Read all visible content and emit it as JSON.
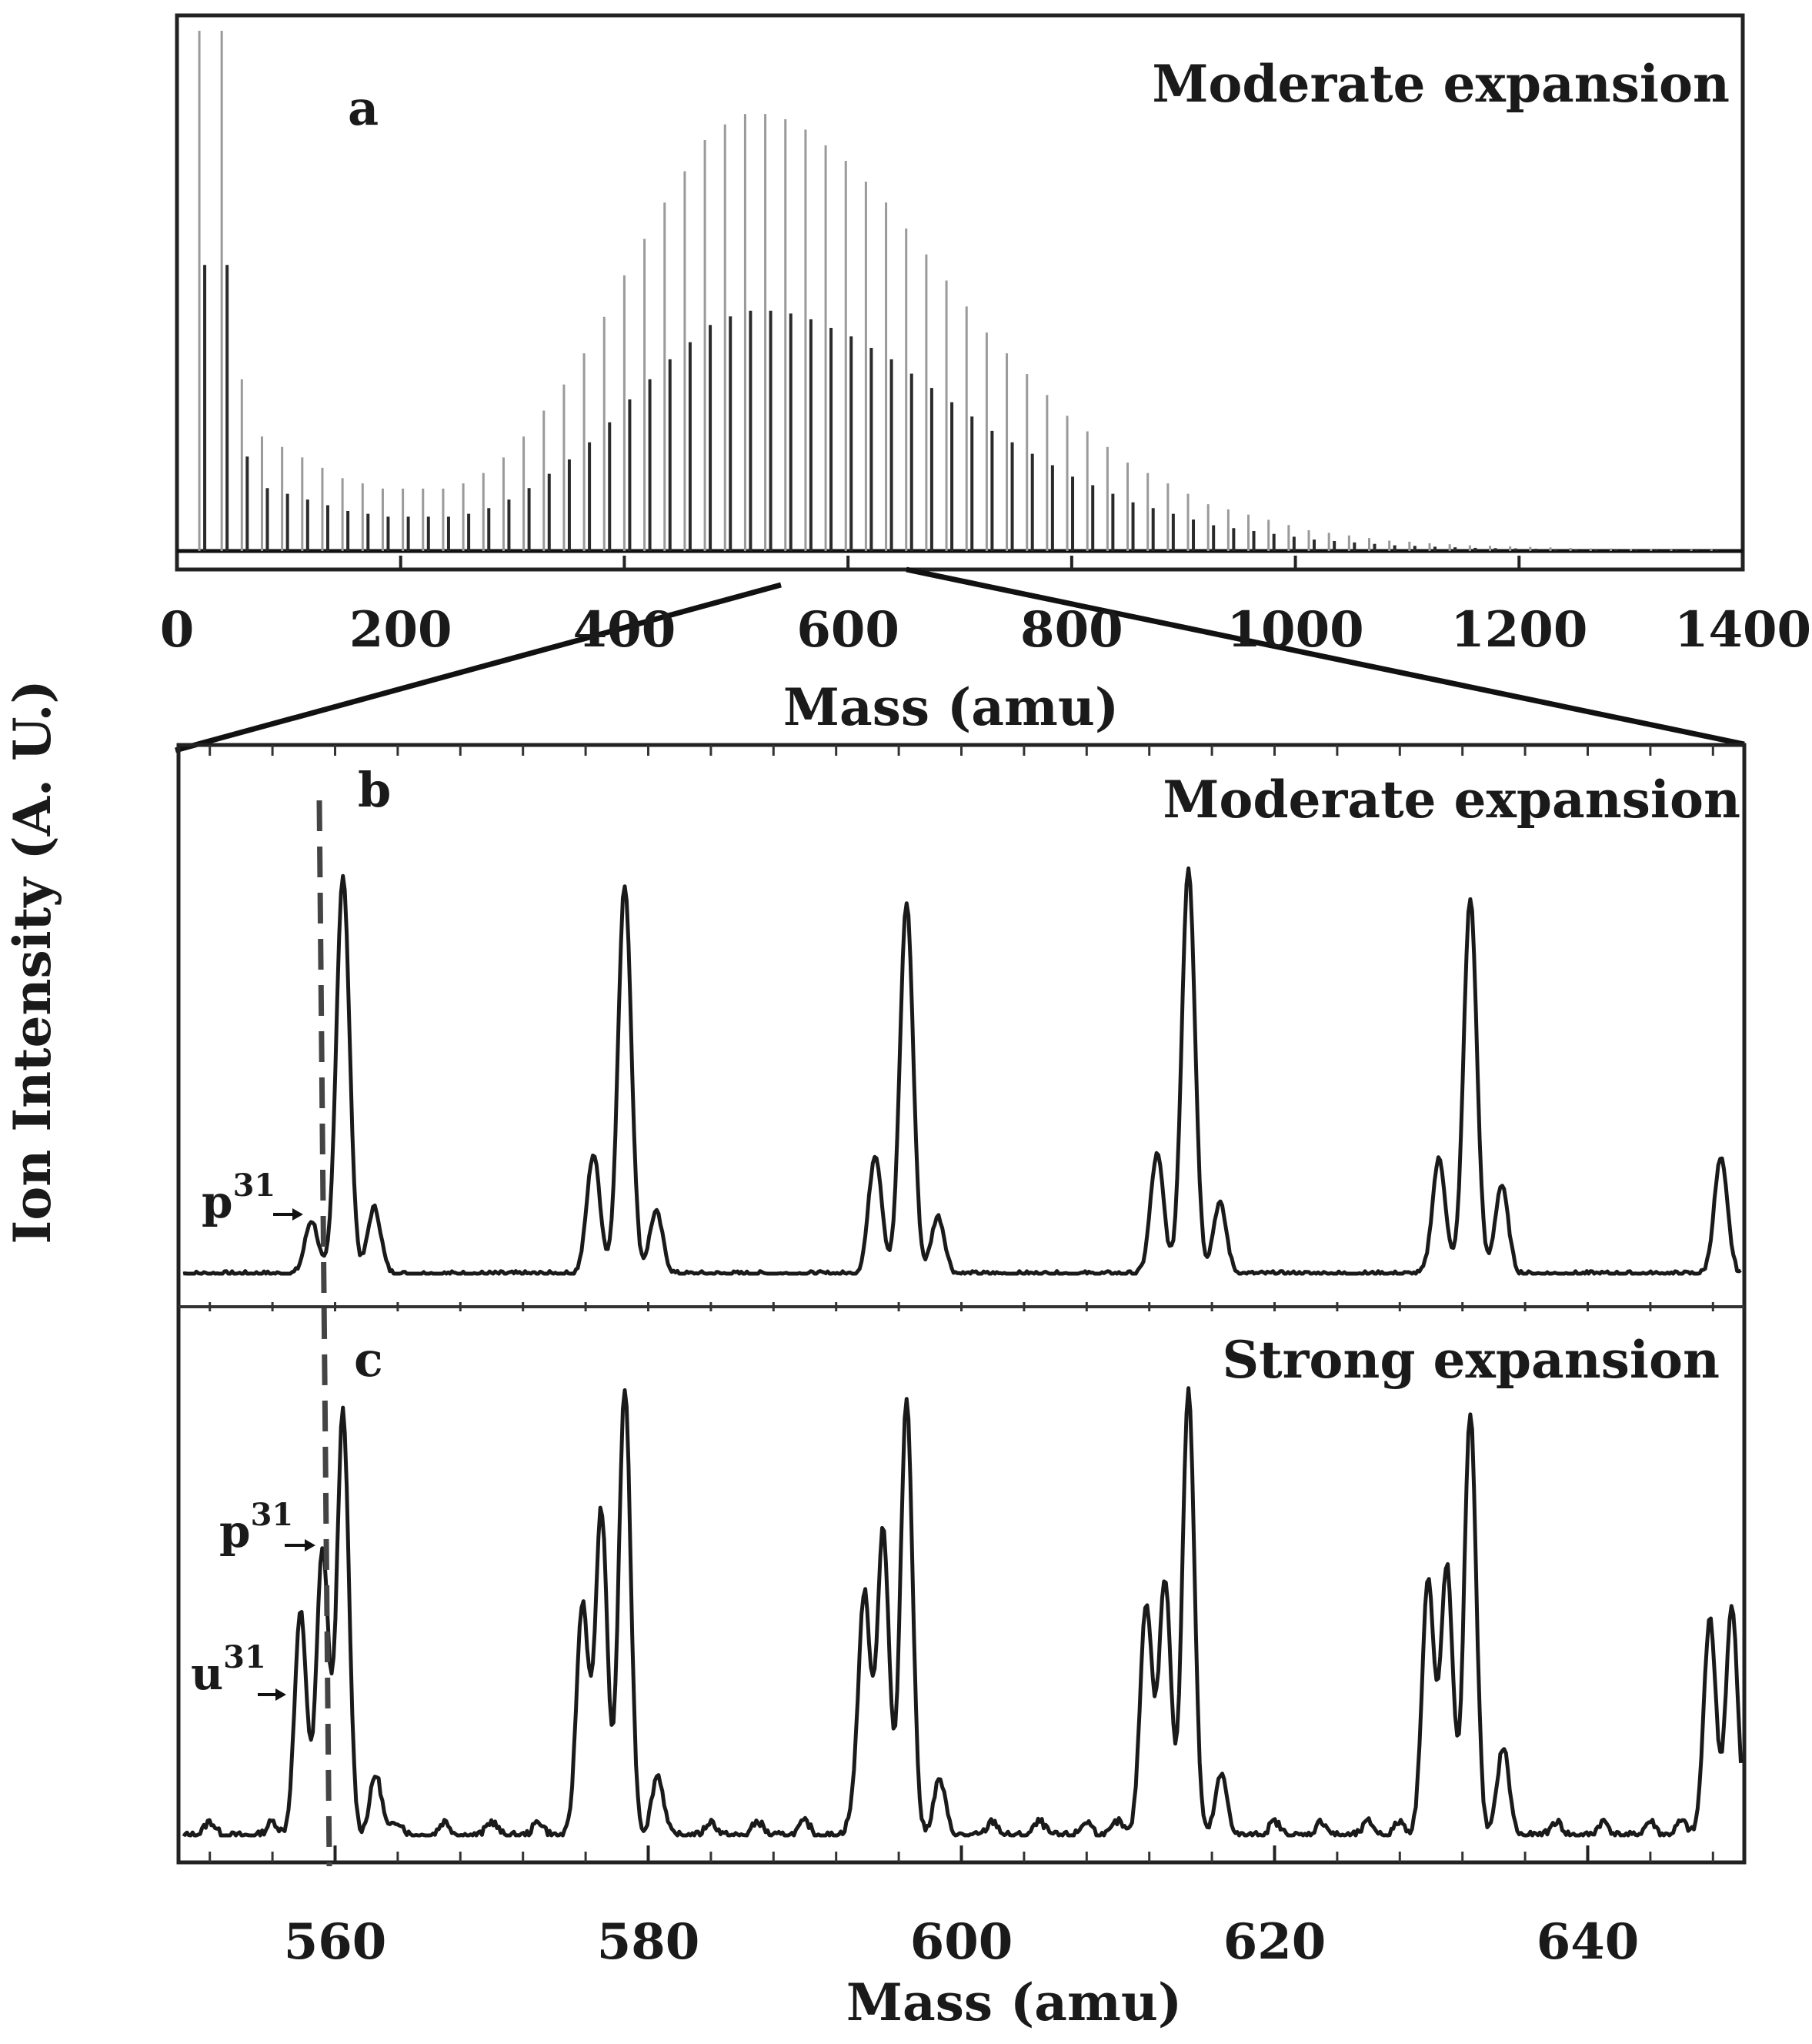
{
  "ylabel": "Ion Intensity (A. U.)",
  "arrow_labels": {
    "b_p31": {
      "base": "p",
      "sup": "31"
    },
    "c_p31": {
      "base": "p",
      "sup": "31"
    },
    "c_u31": {
      "base": "u",
      "sup": "31"
    }
  },
  "chart_data": [
    {
      "panel": "a",
      "type": "bar",
      "title": "Moderate expansion",
      "xlabel": "Mass (amu)",
      "ylabel": "Ion Intensity (A. U.)",
      "xlim": [
        0,
        1400
      ],
      "xticks": [
        0,
        200,
        400,
        600,
        800,
        1000,
        1200,
        1400
      ],
      "tick_labels": [
        "0",
        "200",
        "400",
        "600",
        "800",
        "1000",
        "1200",
        "1400"
      ],
      "grid": false,
      "note": "cluster distribution; intensity in arbitrary units (0-1)",
      "x": [
        20,
        40,
        58,
        76,
        94,
        112,
        130,
        148,
        166,
        184,
        202,
        220,
        238,
        256,
        274,
        292,
        310,
        328,
        346,
        364,
        382,
        400,
        418,
        436,
        454,
        472,
        490,
        508,
        526,
        544,
        562,
        580,
        598,
        616,
        634,
        652,
        670,
        688,
        706,
        724,
        742,
        760,
        778,
        796,
        814,
        832,
        850,
        868,
        886,
        904,
        922,
        940,
        958,
        976,
        994,
        1012,
        1030,
        1048,
        1066,
        1084,
        1102,
        1120,
        1138,
        1156,
        1174,
        1192,
        1210,
        1228,
        1246,
        1264,
        1282,
        1300,
        1318,
        1336,
        1354,
        1372
      ],
      "values": [
        1.0,
        1.0,
        0.33,
        0.22,
        0.2,
        0.18,
        0.16,
        0.14,
        0.13,
        0.12,
        0.12,
        0.12,
        0.12,
        0.13,
        0.15,
        0.18,
        0.22,
        0.27,
        0.32,
        0.38,
        0.45,
        0.53,
        0.6,
        0.67,
        0.73,
        0.79,
        0.82,
        0.84,
        0.84,
        0.83,
        0.81,
        0.78,
        0.75,
        0.71,
        0.67,
        0.62,
        0.57,
        0.52,
        0.47,
        0.42,
        0.38,
        0.34,
        0.3,
        0.26,
        0.23,
        0.2,
        0.17,
        0.15,
        0.13,
        0.11,
        0.09,
        0.08,
        0.07,
        0.06,
        0.05,
        0.04,
        0.035,
        0.03,
        0.025,
        0.02,
        0.018,
        0.015,
        0.013,
        0.011,
        0.01,
        0.009,
        0.008,
        0.007,
        0.006,
        0.005,
        0.005,
        0.004,
        0.004,
        0.003,
        0.003,
        0.003
      ]
    },
    {
      "panel": "b",
      "type": "line",
      "title": "Moderate expansion",
      "xlabel": "Mass (amu)",
      "xlim": [
        550,
        650
      ],
      "grid": false,
      "note": "peak triplets ~18 amu apart; heights normalized 0-1",
      "series": [
        {
          "peaks": [
            {
              "x": 558.5,
              "height": 0.12
            },
            {
              "x": 560.5,
              "height": 0.9
            },
            {
              "x": 562.5,
              "height": 0.15
            },
            {
              "x": 576.5,
              "height": 0.27
            },
            {
              "x": 578.5,
              "height": 0.88
            },
            {
              "x": 580.5,
              "height": 0.14
            },
            {
              "x": 594.5,
              "height": 0.27
            },
            {
              "x": 596.5,
              "height": 0.84
            },
            {
              "x": 598.5,
              "height": 0.13
            },
            {
              "x": 612.5,
              "height": 0.27
            },
            {
              "x": 614.5,
              "height": 0.92
            },
            {
              "x": 616.5,
              "height": 0.16
            },
            {
              "x": 630.5,
              "height": 0.26
            },
            {
              "x": 632.5,
              "height": 0.85
            },
            {
              "x": 634.5,
              "height": 0.2
            },
            {
              "x": 648.5,
              "height": 0.26
            }
          ]
        }
      ]
    },
    {
      "panel": "c",
      "type": "line",
      "title": "Strong expansion",
      "xlabel": "Mass (amu)",
      "xlim": [
        550,
        650
      ],
      "xticks": [
        560,
        580,
        600,
        620,
        640
      ],
      "tick_labels": [
        "560",
        "580",
        "600",
        "620",
        "640"
      ],
      "grid": false,
      "note": "peak clusters ~18 amu apart; heights normalized 0-1",
      "series": [
        {
          "peaks": [
            {
              "x": 557.8,
              "height": 0.48
            },
            {
              "x": 559.2,
              "height": 0.62
            },
            {
              "x": 560.5,
              "height": 0.91
            },
            {
              "x": 562.6,
              "height": 0.13
            },
            {
              "x": 575.8,
              "height": 0.5
            },
            {
              "x": 577.0,
              "height": 0.7
            },
            {
              "x": 578.5,
              "height": 0.96
            },
            {
              "x": 580.6,
              "height": 0.13
            },
            {
              "x": 593.8,
              "height": 0.52
            },
            {
              "x": 595.0,
              "height": 0.66
            },
            {
              "x": 596.5,
              "height": 0.94
            },
            {
              "x": 598.6,
              "height": 0.12
            },
            {
              "x": 611.8,
              "height": 0.5
            },
            {
              "x": 613.0,
              "height": 0.55
            },
            {
              "x": 614.5,
              "height": 0.96
            },
            {
              "x": 616.6,
              "height": 0.13
            },
            {
              "x": 629.8,
              "height": 0.55
            },
            {
              "x": 631.0,
              "height": 0.58
            },
            {
              "x": 632.5,
              "height": 0.91
            },
            {
              "x": 634.6,
              "height": 0.19
            },
            {
              "x": 647.8,
              "height": 0.47
            },
            {
              "x": 649.2,
              "height": 0.49
            }
          ],
          "baseline_bumps": [
            552,
            556,
            564,
            567,
            570,
            573,
            584,
            587,
            590,
            593,
            602,
            605,
            608,
            610,
            620,
            623,
            626,
            628,
            638,
            641,
            644,
            646
          ]
        }
      ]
    }
  ]
}
